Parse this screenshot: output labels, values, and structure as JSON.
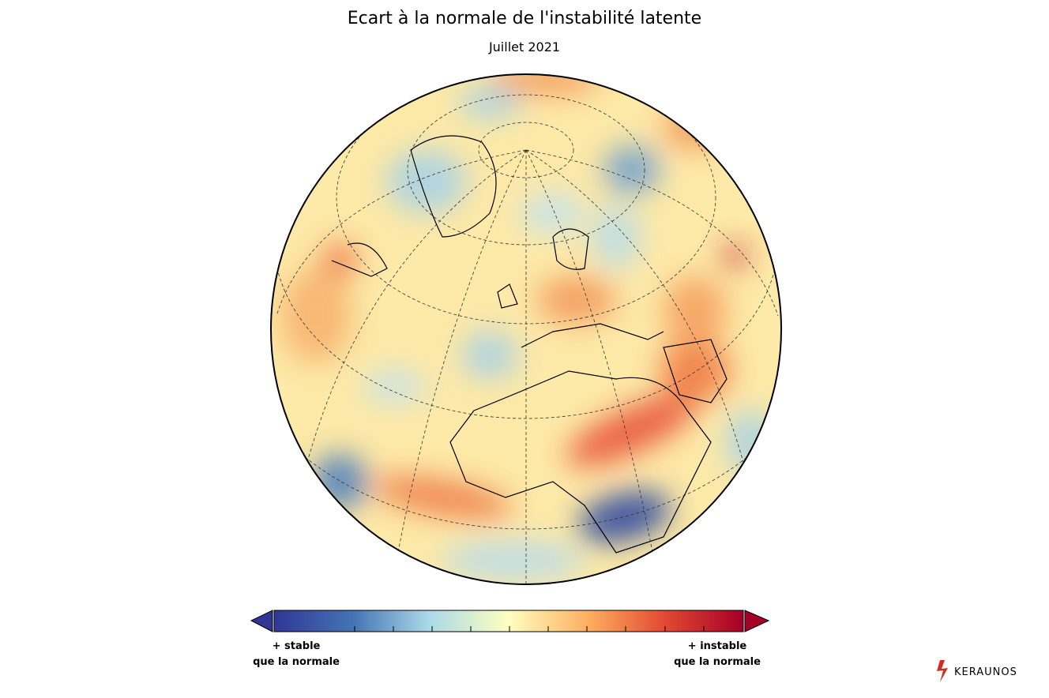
{
  "header": {
    "title": "Ecart à la normale de l'instabilité latente",
    "subtitle": "Juillet 2021"
  },
  "colorbar": {
    "left_label": [
      "+ stable",
      "que la normale"
    ],
    "right_label": [
      "+ instable",
      "que la normale"
    ]
  },
  "logo": "KERAUNOS"
}
